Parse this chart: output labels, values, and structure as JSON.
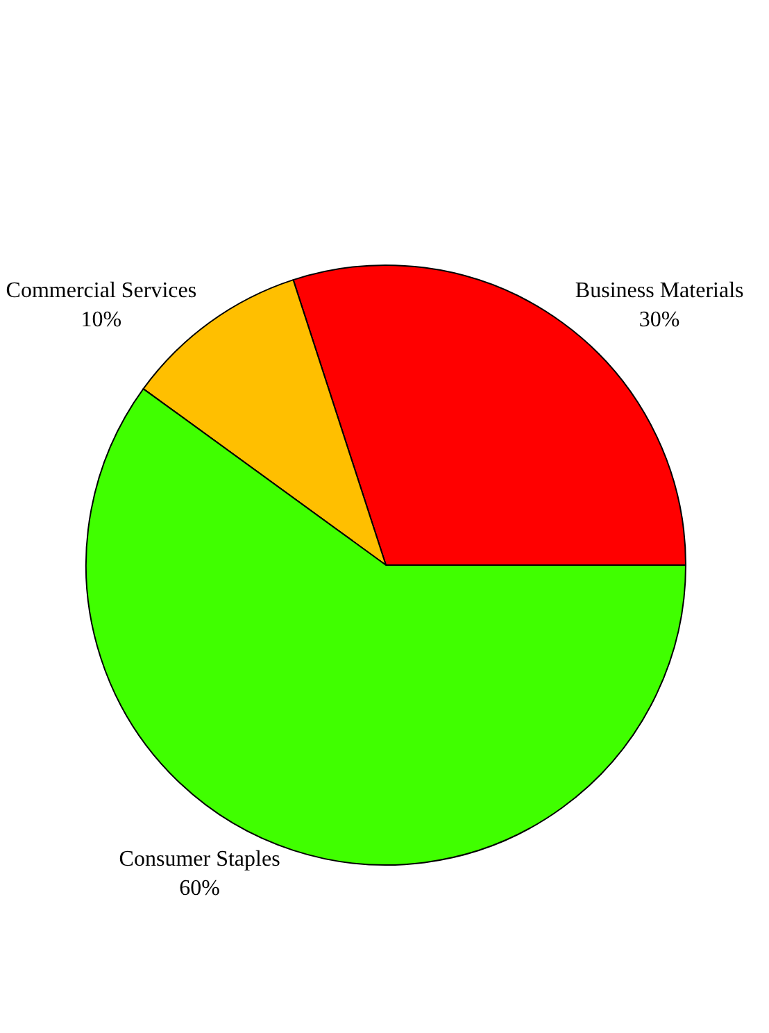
{
  "chart_data": {
    "type": "pie",
    "categories": [
      "Business Materials",
      "Commercial Services",
      "Consumer Staples"
    ],
    "values": [
      30,
      10,
      60
    ],
    "colors": [
      "#ff0000",
      "#ffbf00",
      "#40ff00"
    ],
    "value_labels": [
      "30%",
      "10%",
      "60%"
    ],
    "legend": false
  }
}
